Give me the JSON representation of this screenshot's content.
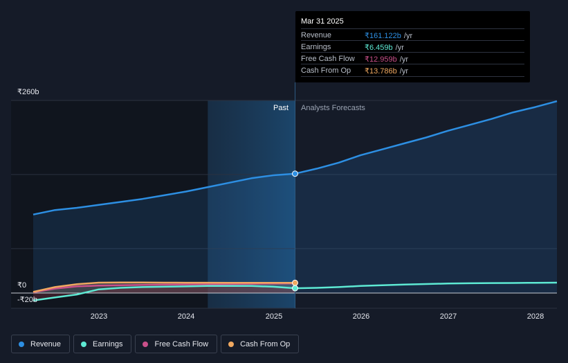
{
  "colors": {
    "revenue": "#2d8fe3",
    "earnings": "#5eead4",
    "free_cash_flow": "#c9508a",
    "cash_from_op": "#f0a860"
  },
  "tooltip": {
    "date": "Mar 31 2025",
    "rows": [
      {
        "name": "Revenue",
        "value": "₹161.122b",
        "unit": "/yr"
      },
      {
        "name": "Earnings",
        "value": "₹6.459b",
        "unit": "/yr"
      },
      {
        "name": "Free Cash Flow",
        "value": "₹12.959b",
        "unit": "/yr"
      },
      {
        "name": "Cash From Op",
        "value": "₹13.786b",
        "unit": "/yr"
      }
    ]
  },
  "regions": {
    "past": "Past",
    "forecast": "Analysts Forecasts"
  },
  "legend": [
    {
      "name": "Revenue",
      "icon": "revenue-dot"
    },
    {
      "name": "Earnings",
      "icon": "earnings-dot"
    },
    {
      "name": "Free Cash Flow",
      "icon": "free-cash-flow-dot"
    },
    {
      "name": "Cash From Op",
      "icon": "cash-from-op-dot"
    }
  ],
  "chart_data": {
    "type": "line",
    "title": "",
    "xlabel": "",
    "ylabel": "",
    "x_ticks": [
      "2023",
      "2024",
      "2025",
      "2026",
      "2027",
      "2028"
    ],
    "y_ticks": [
      "₹260b",
      "₹0",
      "-₹20b"
    ],
    "ylim": [
      -20,
      260
    ],
    "xlim": [
      2022.25,
      2028.25
    ],
    "past_end": 2025.25,
    "highlight_start": 2024.25,
    "grid": true,
    "legend_position": "bottom-left",
    "series": [
      {
        "name": "Revenue",
        "points": [
          [
            2022.25,
            106
          ],
          [
            2022.5,
            112
          ],
          [
            2022.75,
            115
          ],
          [
            2023.0,
            119
          ],
          [
            2023.25,
            123
          ],
          [
            2023.5,
            127
          ],
          [
            2023.75,
            132
          ],
          [
            2024.0,
            137
          ],
          [
            2024.25,
            143
          ],
          [
            2024.5,
            149
          ],
          [
            2024.75,
            155
          ],
          [
            2025.0,
            159
          ],
          [
            2025.25,
            161.1
          ],
          [
            2025.5,
            168
          ],
          [
            2025.75,
            176
          ],
          [
            2026.0,
            186
          ],
          [
            2026.25,
            194
          ],
          [
            2026.5,
            202
          ],
          [
            2026.75,
            210
          ],
          [
            2027.0,
            219
          ],
          [
            2027.25,
            227
          ],
          [
            2027.5,
            235
          ],
          [
            2027.75,
            244
          ],
          [
            2028.0,
            251
          ],
          [
            2028.25,
            259
          ]
        ]
      },
      {
        "name": "Earnings",
        "points": [
          [
            2022.25,
            -10
          ],
          [
            2022.5,
            -6
          ],
          [
            2022.75,
            -2
          ],
          [
            2023.0,
            5
          ],
          [
            2023.25,
            7
          ],
          [
            2023.5,
            8
          ],
          [
            2023.75,
            8.5
          ],
          [
            2024.0,
            9
          ],
          [
            2024.25,
            9.5
          ],
          [
            2024.5,
            9.5
          ],
          [
            2024.75,
            9.5
          ],
          [
            2025.0,
            8.5
          ],
          [
            2025.25,
            6.5
          ],
          [
            2025.5,
            7
          ],
          [
            2025.75,
            8
          ],
          [
            2026.0,
            9.5
          ],
          [
            2026.25,
            10.5
          ],
          [
            2026.5,
            11.5
          ],
          [
            2026.75,
            12.2
          ],
          [
            2027.0,
            12.8
          ],
          [
            2027.25,
            13.2
          ],
          [
            2027.5,
            13.5
          ],
          [
            2027.75,
            13.6
          ],
          [
            2028.0,
            13.8
          ],
          [
            2028.25,
            14
          ]
        ]
      },
      {
        "name": "Free Cash Flow",
        "points": [
          [
            2022.25,
            1
          ],
          [
            2022.5,
            6
          ],
          [
            2022.75,
            9
          ],
          [
            2023.0,
            10
          ],
          [
            2023.25,
            10.5
          ],
          [
            2023.5,
            11
          ],
          [
            2023.75,
            11.3
          ],
          [
            2024.0,
            11.6
          ],
          [
            2024.25,
            11.8
          ],
          [
            2024.5,
            12.1
          ],
          [
            2024.75,
            12.4
          ],
          [
            2025.0,
            12.7
          ],
          [
            2025.25,
            12.96
          ]
        ]
      },
      {
        "name": "Cash From Op",
        "points": [
          [
            2022.25,
            1.5
          ],
          [
            2022.5,
            8
          ],
          [
            2022.75,
            12
          ],
          [
            2023.0,
            14
          ],
          [
            2023.25,
            14.2
          ],
          [
            2023.5,
            14.2
          ],
          [
            2023.75,
            14
          ],
          [
            2024.0,
            13.9
          ],
          [
            2024.25,
            13.9
          ],
          [
            2024.5,
            13.8
          ],
          [
            2024.75,
            13.8
          ],
          [
            2025.0,
            13.8
          ],
          [
            2025.25,
            13.79
          ]
        ]
      }
    ]
  }
}
